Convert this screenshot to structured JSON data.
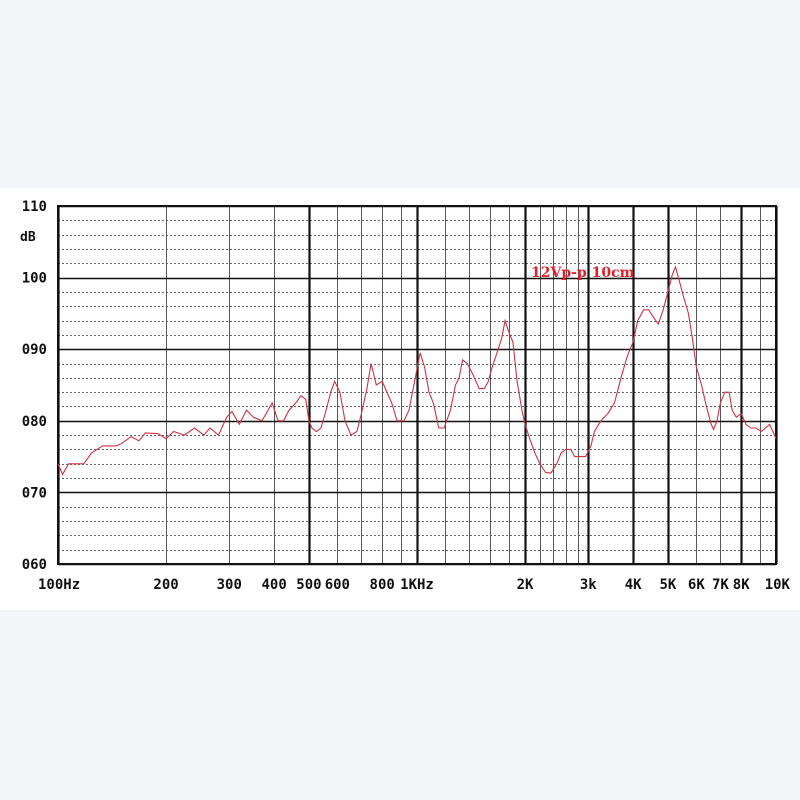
{
  "chart_data": {
    "type": "line",
    "title": "",
    "xlabel": "",
    "ylabel": "",
    "y_unit_label": "dB",
    "xscale": "log",
    "xlim": [
      100,
      10000
    ],
    "ylim": [
      60,
      110
    ],
    "y_ticks": [
      {
        "value": 110,
        "label": "110"
      },
      {
        "value": 100,
        "label": "100"
      },
      {
        "value": 90,
        "label": "090"
      },
      {
        "value": 80,
        "label": "080"
      },
      {
        "value": 70,
        "label": "070"
      },
      {
        "value": 60,
        "label": "060"
      }
    ],
    "x_ticks": [
      {
        "value": 100,
        "label": "100Hz"
      },
      {
        "value": 200,
        "label": "200"
      },
      {
        "value": 300,
        "label": "300"
      },
      {
        "value": 400,
        "label": "400"
      },
      {
        "value": 500,
        "label": "500"
      },
      {
        "value": 600,
        "label": "600"
      },
      {
        "value": 800,
        "label": "800"
      },
      {
        "value": 1000,
        "label": "1KHz"
      },
      {
        "value": 2000,
        "label": "2K"
      },
      {
        "value": 3000,
        "label": "3k"
      },
      {
        "value": 4000,
        "label": "4K"
      },
      {
        "value": 5000,
        "label": "5K"
      },
      {
        "value": 6000,
        "label": "6K"
      },
      {
        "value": 7000,
        "label": "7K"
      },
      {
        "value": 8000,
        "label": "8K"
      },
      {
        "value": 10000,
        "label": "10K"
      }
    ],
    "major_x_lines": [
      100,
      500,
      1000,
      2000,
      3000,
      4000,
      5000,
      8000,
      10000
    ],
    "minor_x_lines": [
      200,
      300,
      400,
      600,
      700,
      800,
      900,
      1200,
      1400,
      1600,
      1800,
      2200,
      2400,
      2600,
      2800,
      6000,
      7000,
      9000
    ],
    "grid": true,
    "annotation": "12Vp-p 10cm",
    "line_color": "#cc3344",
    "annotation_color": "#e0202a",
    "series": [
      {
        "points": [
          [
            100,
            74
          ],
          [
            103,
            72.5
          ],
          [
            107,
            74
          ],
          [
            118,
            74
          ],
          [
            124,
            75.5
          ],
          [
            133,
            76.5
          ],
          [
            145,
            76.5
          ],
          [
            150,
            76.8
          ],
          [
            160,
            77.8
          ],
          [
            168,
            77.2
          ],
          [
            175,
            78.3
          ],
          [
            190,
            78.2
          ],
          [
            200,
            77.5
          ],
          [
            210,
            78.5
          ],
          [
            225,
            78
          ],
          [
            240,
            79
          ],
          [
            255,
            78
          ],
          [
            265,
            79
          ],
          [
            280,
            78
          ],
          [
            295,
            80.5
          ],
          [
            305,
            81.3
          ],
          [
            320,
            79.5
          ],
          [
            335,
            81.5
          ],
          [
            350,
            80.5
          ],
          [
            370,
            80
          ],
          [
            380,
            81
          ],
          [
            395,
            82.5
          ],
          [
            410,
            80
          ],
          [
            425,
            80
          ],
          [
            440,
            81.5
          ],
          [
            460,
            82.5
          ],
          [
            475,
            83.5
          ],
          [
            490,
            83
          ],
          [
            500,
            80
          ],
          [
            510,
            79
          ],
          [
            525,
            78.5
          ],
          [
            540,
            79
          ],
          [
            555,
            81
          ],
          [
            575,
            84
          ],
          [
            590,
            85.5
          ],
          [
            610,
            84
          ],
          [
            630,
            80
          ],
          [
            655,
            78
          ],
          [
            680,
            78.5
          ],
          [
            700,
            81
          ],
          [
            725,
            84.5
          ],
          [
            745,
            88
          ],
          [
            770,
            85
          ],
          [
            800,
            85.5
          ],
          [
            825,
            84
          ],
          [
            850,
            82.5
          ],
          [
            880,
            80
          ],
          [
            920,
            80
          ],
          [
            950,
            81.5
          ],
          [
            980,
            85
          ],
          [
            1020,
            89.5
          ],
          [
            1050,
            87.5
          ],
          [
            1080,
            84
          ],
          [
            1110,
            82.5
          ],
          [
            1150,
            79
          ],
          [
            1190,
            79
          ],
          [
            1240,
            81.5
          ],
          [
            1280,
            85
          ],
          [
            1310,
            86
          ],
          [
            1340,
            88.5
          ],
          [
            1380,
            88
          ],
          [
            1430,
            86.5
          ],
          [
            1490,
            84.5
          ],
          [
            1540,
            84.5
          ],
          [
            1580,
            85.5
          ],
          [
            1620,
            87.5
          ],
          [
            1670,
            89.5
          ],
          [
            1720,
            91.5
          ],
          [
            1760,
            94
          ],
          [
            1800,
            92.5
          ],
          [
            1850,
            91
          ],
          [
            1900,
            85.5
          ],
          [
            1960,
            81.5
          ],
          [
            2000,
            79.5
          ],
          [
            2060,
            77.5
          ],
          [
            2130,
            75.5
          ],
          [
            2200,
            74
          ],
          [
            2280,
            72.8
          ],
          [
            2360,
            72.7
          ],
          [
            2450,
            74
          ],
          [
            2520,
            75.5
          ],
          [
            2600,
            76
          ],
          [
            2680,
            76
          ],
          [
            2750,
            75
          ],
          [
            2850,
            75
          ],
          [
            2950,
            75
          ],
          [
            3050,
            76.5
          ],
          [
            3120,
            78.5
          ],
          [
            3250,
            80
          ],
          [
            3400,
            81
          ],
          [
            3550,
            82.5
          ],
          [
            3700,
            86
          ],
          [
            3850,
            89
          ],
          [
            4000,
            91
          ],
          [
            4120,
            94
          ],
          [
            4280,
            95.5
          ],
          [
            4420,
            95.5
          ],
          [
            4550,
            94.5
          ],
          [
            4700,
            93.5
          ],
          [
            4850,
            95.5
          ],
          [
            5000,
            98
          ],
          [
            5150,
            100.5
          ],
          [
            5250,
            101.5
          ],
          [
            5380,
            99.5
          ],
          [
            5550,
            97
          ],
          [
            5700,
            95
          ],
          [
            5850,
            91.5
          ],
          [
            6000,
            87.5
          ],
          [
            6200,
            85
          ],
          [
            6400,
            82
          ],
          [
            6600,
            79.5
          ],
          [
            6700,
            78.8
          ],
          [
            6850,
            80
          ],
          [
            7000,
            82.5
          ],
          [
            7200,
            84
          ],
          [
            7400,
            84
          ],
          [
            7550,
            81.5
          ],
          [
            7750,
            80.5
          ],
          [
            8000,
            81
          ],
          [
            8250,
            79.5
          ],
          [
            8500,
            79
          ],
          [
            8800,
            79
          ],
          [
            9100,
            78.5
          ],
          [
            9350,
            79
          ],
          [
            9600,
            79.5
          ],
          [
            9800,
            78.5
          ],
          [
            10000,
            77.5
          ]
        ]
      }
    ]
  }
}
